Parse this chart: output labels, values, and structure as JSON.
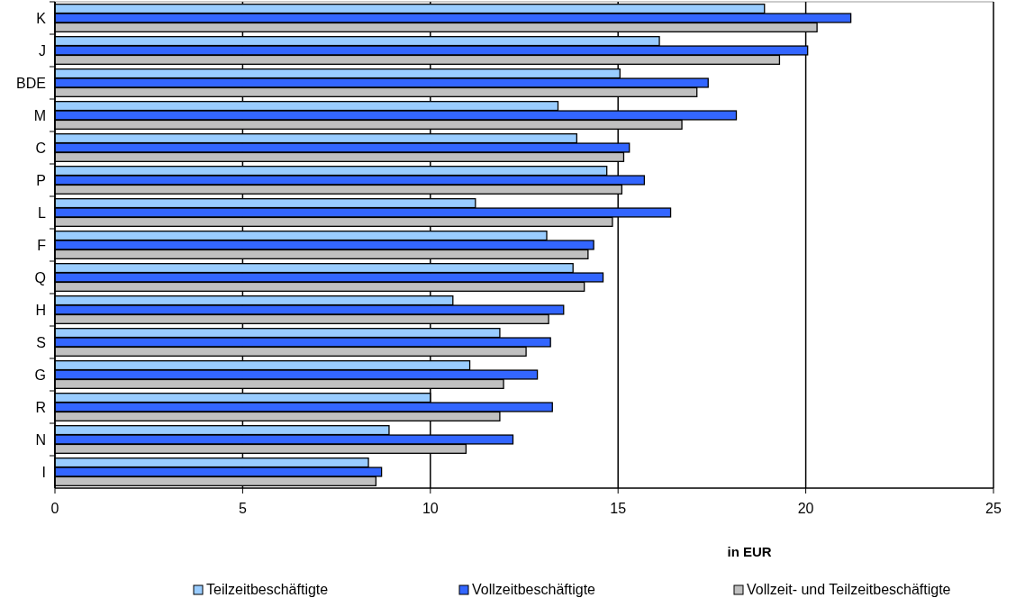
{
  "chart_data": {
    "type": "bar",
    "orientation": "horizontal",
    "xlabel": "in EUR",
    "categories": [
      "K",
      "J",
      "BDE",
      "M",
      "C",
      "P",
      "L",
      "F",
      "Q",
      "H",
      "S",
      "G",
      "R",
      "N",
      "I"
    ],
    "series": [
      {
        "name": "Teilzeitbeschäftigte",
        "color": "#99ccff",
        "values": [
          18.9,
          16.1,
          15.05,
          13.4,
          13.9,
          14.7,
          11.2,
          13.1,
          13.8,
          10.6,
          11.85,
          11.05,
          10.0,
          8.9,
          8.35
        ]
      },
      {
        "name": "Vollzeitbeschäftigte",
        "color": "#3366ff",
        "values": [
          21.2,
          20.05,
          17.4,
          18.15,
          15.3,
          15.7,
          16.4,
          14.35,
          14.6,
          13.55,
          13.2,
          12.85,
          13.25,
          12.2,
          8.7
        ]
      },
      {
        "name": "Vollzeit- und Teilzeitbeschäftigte",
        "color": "#c0c0c0",
        "values": [
          20.3,
          19.3,
          17.1,
          16.7,
          15.15,
          15.1,
          14.85,
          14.2,
          14.1,
          13.15,
          12.55,
          11.95,
          11.85,
          10.95,
          8.55
        ]
      }
    ],
    "xlim": [
      0,
      25
    ],
    "xticks": [
      0,
      5,
      10,
      15,
      20,
      25
    ],
    "grid": "x",
    "legend": "bottom"
  }
}
